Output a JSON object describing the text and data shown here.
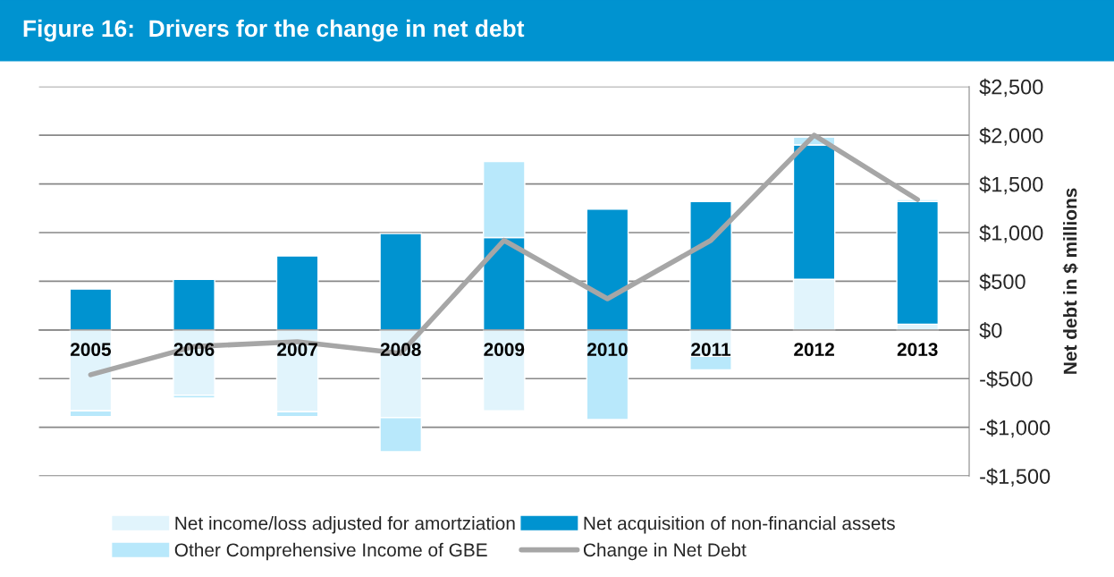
{
  "chart_data": {
    "type": "bar",
    "stacked": true,
    "title": "Figure 16:  Drivers for the change in net debt",
    "ylabel": "Net debt in $ millions",
    "categories": [
      "2005",
      "2006",
      "2007",
      "2008",
      "2009",
      "2010",
      "2011",
      "2012",
      "2013"
    ],
    "series": [
      {
        "name": "Net income/loss adjusted for amortziation",
        "color": "#e1f4fc",
        "values": [
          -830,
          -670,
          -840,
          -900,
          -830,
          0,
          -270,
          520,
          60
        ]
      },
      {
        "name": "Net acquisition of non-financial assets",
        "color": "#0093d0",
        "values": [
          420,
          520,
          760,
          990,
          950,
          1240,
          1320,
          1380,
          1260
        ]
      },
      {
        "name": "Other Comprehensive Income of GBE",
        "color": "#b8e8fb",
        "values": [
          -60,
          -30,
          -50,
          -350,
          780,
          -920,
          -140,
          80,
          20
        ]
      },
      {
        "name": "Change in Net Debt",
        "type": "line",
        "color": "#a6a6a6",
        "values": [
          -460,
          -170,
          -120,
          -240,
          920,
          320,
          920,
          2000,
          1340
        ]
      }
    ],
    "ylim": [
      -1500,
      2500
    ],
    "yticks": [
      {
        "value": 2500,
        "label": "$2,500"
      },
      {
        "value": 2000,
        "label": "$2,000"
      },
      {
        "value": 1500,
        "label": "$1,500"
      },
      {
        "value": 1000,
        "label": "$1,000"
      },
      {
        "value": 500,
        "label": "$500"
      },
      {
        "value": 0,
        "label": "$0"
      },
      {
        "value": -500,
        "label": "-$500"
      },
      {
        "value": -1000,
        "label": "-$1,000"
      },
      {
        "value": -1500,
        "label": "-$1,500"
      }
    ],
    "grid": "y",
    "legend": "bottom",
    "marker": "none",
    "line_style": "solid"
  }
}
